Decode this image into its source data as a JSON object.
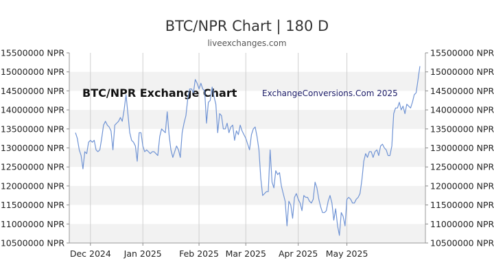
{
  "page": {
    "title": "BTC/NPR Chart | 180 D",
    "subtitle": "liveexchanges.com"
  },
  "watermarks": {
    "left": "BTC/NPR Exchange Chart",
    "right": "ExchangeConversions.Com 2025"
  },
  "colors": {
    "line": "#6f93d4",
    "band": "#f2f2f2",
    "grid": "#cfcfcf"
  },
  "chart_data": {
    "type": "line",
    "title": "BTC/NPR Chart | 180 D",
    "series": [
      {
        "name": "",
        "values": [
          13400000,
          13250000,
          12950000,
          12800000,
          12450000,
          12900000,
          12850000,
          13150000,
          13200000,
          13150000,
          13200000,
          12950000,
          12900000,
          12950000,
          13250000,
          13600000,
          13700000,
          13600000,
          13550000,
          13450000,
          12950000,
          13600000,
          13650000,
          13700000,
          13800000,
          13700000,
          14000000,
          14400000,
          13900000,
          13400000,
          13200000,
          13150000,
          13050000,
          12650000,
          13400000,
          13400000,
          13050000,
          12900000,
          12950000,
          12900000,
          12850000,
          12900000,
          12900000,
          12850000,
          12800000,
          13300000,
          13500000,
          13450000,
          13400000,
          13950000,
          13350000,
          12950000,
          12750000,
          12900000,
          13050000,
          12950000,
          12750000,
          13400000,
          13650000,
          13850000,
          14300000,
          14550000,
          14550000,
          14450000,
          14800000,
          14700000,
          14550000,
          14700000,
          14550000,
          14500000,
          13650000,
          14200000,
          14250000,
          14600000,
          14350000,
          14150000,
          13400000,
          13900000,
          13850000,
          13500000,
          13500000,
          13650000,
          13400000,
          13550000,
          13600000,
          13200000,
          13450000,
          13350000,
          13600000,
          13450000,
          13350000,
          13250000,
          13100000,
          12950000,
          13350000,
          13500000,
          13550000,
          13300000,
          12950000,
          12200000,
          11750000,
          11800000,
          11850000,
          11850000,
          12950000,
          12100000,
          11950000,
          12400000,
          12300000,
          12350000,
          12000000,
          11800000,
          11600000,
          10950000,
          11600000,
          11500000,
          11150000,
          11700000,
          11800000,
          11650000,
          11550000,
          11350000,
          11750000,
          11700000,
          11700000,
          11600000,
          11550000,
          11650000,
          12100000,
          11950000,
          11650000,
          11450000,
          11300000,
          11300000,
          11350000,
          11600000,
          11750000,
          11550000,
          11100000,
          11400000,
          10950000,
          10700000,
          11300000,
          11200000,
          10950000,
          11650000,
          11700000,
          11650000,
          11550000,
          11550000,
          11650000,
          11700000,
          11800000,
          12150000,
          12650000,
          12850000,
          12750000,
          12900000,
          12900000,
          12750000,
          12900000,
          12950000,
          12800000,
          13050000,
          13100000,
          13000000,
          12950000,
          12800000,
          12800000,
          13050000,
          13900000,
          14050000,
          14050000,
          14200000,
          14000000,
          14100000,
          13900000,
          14150000,
          14100000,
          14050000,
          14200000,
          14400000,
          14450000,
          14800000,
          15150000
        ]
      }
    ],
    "x_ticks": [
      "Dec 2024",
      "Jan 2025",
      "Feb 2025",
      "Mar 2025",
      "Apr 2025",
      "May 2025"
    ],
    "x_tick_index": [
      8,
      36,
      66,
      91,
      119,
      145
    ],
    "y_ticks": [
      "10500000 NPR",
      "11000000 NPR",
      "11500000 NPR",
      "12000000 NPR",
      "12500000 NPR",
      "13000000 NPR",
      "13500000 NPR",
      "14000000 NPR",
      "14500000 NPR",
      "15000000 NPR",
      "15500000 NPR"
    ],
    "y_tick_values": [
      10500000,
      11000000,
      11500000,
      12000000,
      12500000,
      13000000,
      13500000,
      14000000,
      14500000,
      15000000,
      15500000
    ],
    "ylim": [
      10500000,
      15500000
    ],
    "grid": true,
    "y_labels_both_sides": true
  }
}
